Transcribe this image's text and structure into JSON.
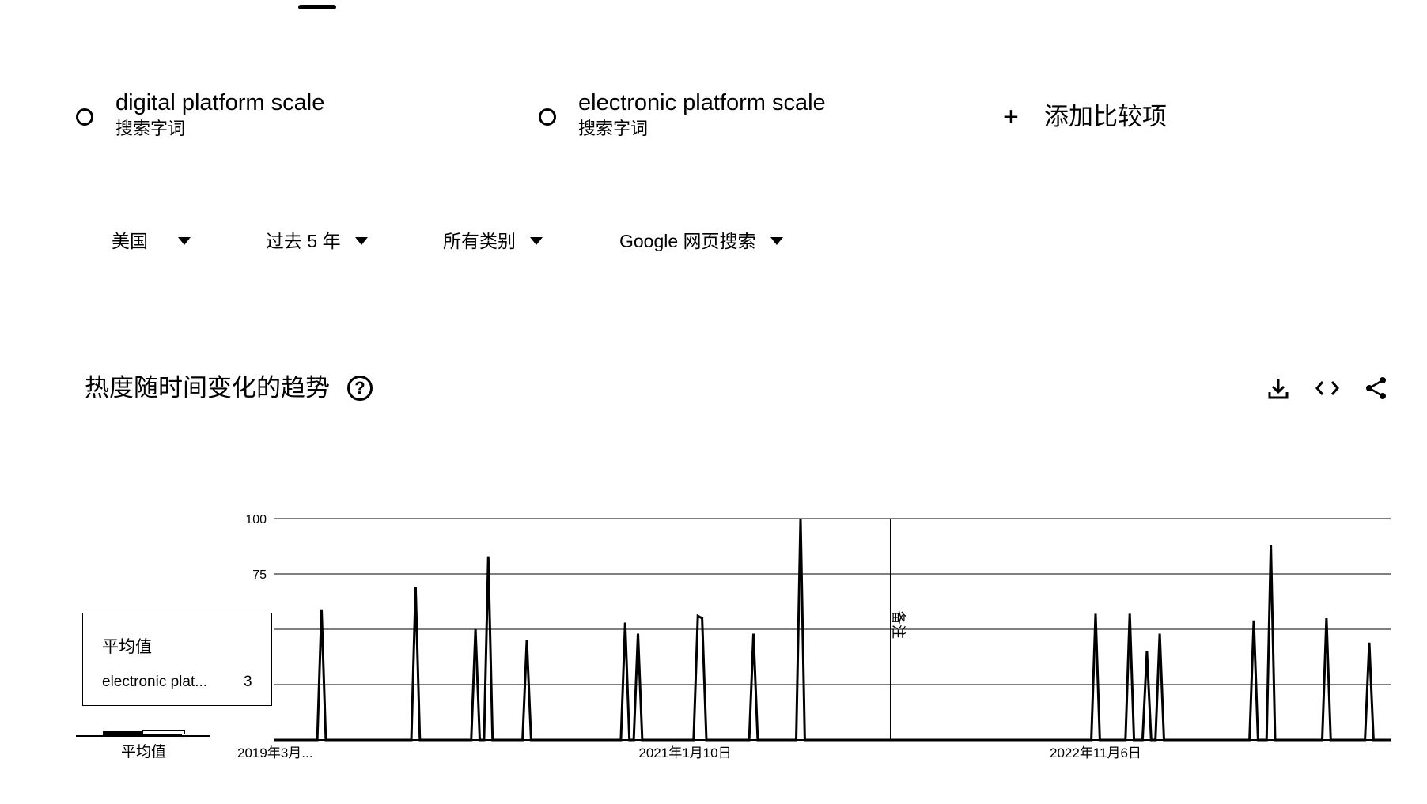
{
  "terms": [
    {
      "name": "digital platform scale",
      "sub": "搜索字词"
    },
    {
      "name": "electronic platform scale",
      "sub": "搜索字词"
    }
  ],
  "add_term_label": "添加比较项",
  "filters": [
    "美国",
    "过去 5 年",
    "所有类别",
    "Google 网页搜索"
  ],
  "section_title": "热度随时间变化的趋势",
  "actions": [
    "download-icon",
    "embed-icon",
    "share-icon"
  ],
  "average_box": {
    "title": "平均值",
    "series_label": "electronic plat...",
    "value": "3"
  },
  "average_axis_label": "平均值",
  "colors": {
    "line": "#000000",
    "grid": "#000000",
    "background": "#ffffff"
  },
  "chart_data": {
    "type": "line",
    "ylim": [
      0,
      100
    ],
    "y_ticks": [
      100,
      75
    ],
    "x_tick_labels": [
      {
        "label": "2019年3月...",
        "week": 0
      },
      {
        "label": "2021年1月10日",
        "week": 96
      },
      {
        "label": "2022年11月6日",
        "week": 192
      }
    ],
    "annotation": {
      "label": "备注",
      "week": 144
    },
    "weeks": 262,
    "peaks": [
      {
        "week": 11,
        "value": 59
      },
      {
        "week": 33,
        "value": 69
      },
      {
        "week": 47,
        "value": 50
      },
      {
        "week": 50,
        "value": 83
      },
      {
        "week": 59,
        "value": 45
      },
      {
        "week": 82,
        "value": 53
      },
      {
        "week": 85,
        "value": 48
      },
      {
        "week": 99,
        "value": 56
      },
      {
        "week": 100,
        "value": 55
      },
      {
        "week": 112,
        "value": 48
      },
      {
        "week": 123,
        "value": 100
      },
      {
        "week": 192,
        "value": 57
      },
      {
        "week": 200,
        "value": 57
      },
      {
        "week": 204,
        "value": 40
      },
      {
        "week": 207,
        "value": 48
      },
      {
        "week": 229,
        "value": 54
      },
      {
        "week": 233,
        "value": 88
      },
      {
        "week": 246,
        "value": 55
      },
      {
        "week": 256,
        "value": 44
      }
    ]
  }
}
